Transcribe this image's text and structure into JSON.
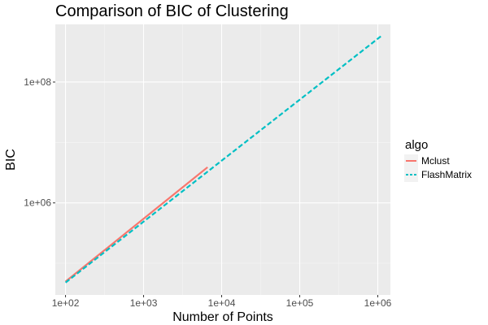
{
  "chart_data": {
    "type": "line",
    "title": "Comparison of BIC of Clustering",
    "xlabel": "Number of Points",
    "ylabel": "BIC",
    "x_scale": "log10",
    "y_scale": "log10",
    "xlim": [
      74,
      1450000
    ],
    "ylim": [
      30000,
      900000000
    ],
    "x_ticks": [
      100,
      1000,
      10000,
      100000,
      1000000
    ],
    "x_tick_labels": [
      "1e+02",
      "1e+03",
      "1e+04",
      "1e+05",
      "1e+06"
    ],
    "y_ticks": [
      1000000,
      100000000
    ],
    "y_tick_labels": [
      "1e+06",
      "1e+08"
    ],
    "grid": true,
    "legend": {
      "title": "algo",
      "position": "right"
    },
    "series": [
      {
        "name": "Mclust",
        "color": "#F8766D",
        "linestyle": "solid",
        "x": [
          100,
          6600
        ],
        "y": [
          50000,
          3900000
        ]
      },
      {
        "name": "FlashMatrix",
        "color": "#00BFC4",
        "linestyle": "dashed",
        "x": [
          100,
          1100000
        ],
        "y": [
          48000,
          575000000
        ]
      }
    ]
  }
}
